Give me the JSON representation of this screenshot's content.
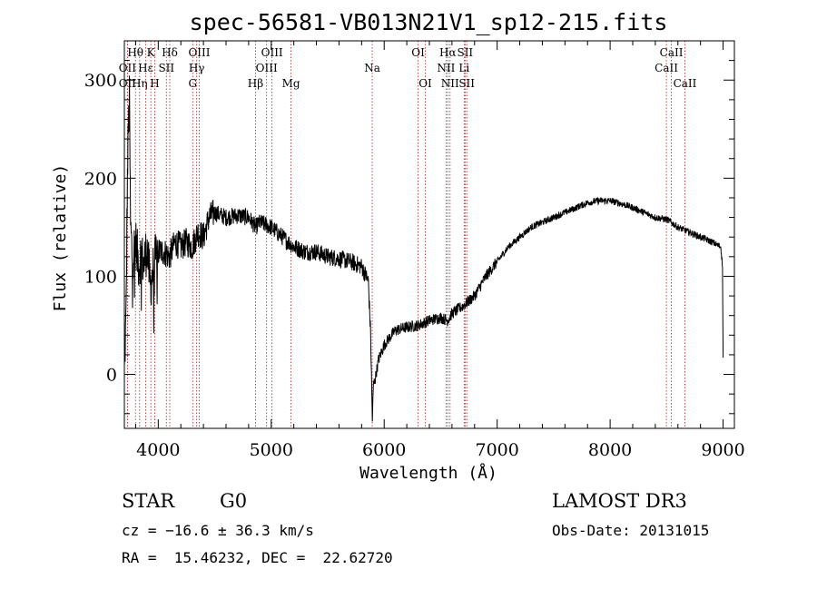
{
  "chart_data": {
    "type": "line",
    "title": "spec-56581-VB013N21V1_sp12-215.fits",
    "xlabel": "Wavelength (Å)",
    "ylabel": "Flux (relative)",
    "xlim": [
      3700,
      9100
    ],
    "ylim": [
      -55,
      340
    ],
    "xticks": [
      4000,
      5000,
      6000,
      7000,
      8000,
      9000
    ],
    "yticks": [
      0,
      100,
      200,
      300
    ],
    "series": [
      {
        "name": "flux",
        "anchors": [
          [
            3700,
            0
          ],
          [
            3715,
            60
          ],
          [
            3725,
            180
          ],
          [
            3735,
            250
          ],
          [
            3745,
            280
          ],
          [
            3755,
            150
          ],
          [
            3770,
            120
          ],
          [
            3800,
            135
          ],
          [
            3830,
            110
          ],
          [
            3850,
            125
          ],
          [
            3870,
            110
          ],
          [
            3900,
            130
          ],
          [
            3930,
            90
          ],
          [
            3960,
            110
          ],
          [
            3990,
            125
          ],
          [
            4050,
            125
          ],
          [
            4100,
            120
          ],
          [
            4150,
            135
          ],
          [
            4200,
            130
          ],
          [
            4250,
            135
          ],
          [
            4300,
            130
          ],
          [
            4350,
            145
          ],
          [
            4400,
            140
          ],
          [
            4450,
            160
          ],
          [
            4500,
            165
          ],
          [
            4600,
            160
          ],
          [
            4700,
            162
          ],
          [
            4800,
            160
          ],
          [
            4861,
            150
          ],
          [
            4900,
            155
          ],
          [
            5000,
            150
          ],
          [
            5100,
            140
          ],
          [
            5200,
            130
          ],
          [
            5300,
            125
          ],
          [
            5400,
            125
          ],
          [
            5500,
            120
          ],
          [
            5600,
            118
          ],
          [
            5700,
            115
          ],
          [
            5800,
            110
          ],
          [
            5860,
            95
          ],
          [
            5880,
            40
          ],
          [
            5895,
            -45
          ],
          [
            5905,
            -10
          ],
          [
            5920,
            -5
          ],
          [
            5950,
            15
          ],
          [
            6000,
            30
          ],
          [
            6050,
            38
          ],
          [
            6100,
            45
          ],
          [
            6200,
            48
          ],
          [
            6300,
            50
          ],
          [
            6400,
            55
          ],
          [
            6500,
            58
          ],
          [
            6560,
            55
          ],
          [
            6600,
            62
          ],
          [
            6700,
            70
          ],
          [
            6800,
            80
          ],
          [
            6900,
            100
          ],
          [
            7000,
            115
          ],
          [
            7100,
            130
          ],
          [
            7200,
            140
          ],
          [
            7300,
            150
          ],
          [
            7400,
            155
          ],
          [
            7500,
            160
          ],
          [
            7600,
            165
          ],
          [
            7700,
            170
          ],
          [
            7800,
            175
          ],
          [
            7900,
            177
          ],
          [
            8000,
            177
          ],
          [
            8100,
            174
          ],
          [
            8200,
            170
          ],
          [
            8300,
            165
          ],
          [
            8400,
            160
          ],
          [
            8500,
            158
          ],
          [
            8542,
            155
          ],
          [
            8600,
            150
          ],
          [
            8700,
            145
          ],
          [
            8800,
            140
          ],
          [
            8900,
            135
          ],
          [
            8980,
            130
          ],
          [
            8995,
            110
          ],
          [
            9000,
            20
          ]
        ]
      }
    ],
    "lines": [
      {
        "label": "Hθ",
        "wave": 3798,
        "row": 1
      },
      {
        "label": "OII",
        "wave": 3727,
        "row": 2
      },
      {
        "label": "OII",
        "wave": 3727,
        "row": 3
      },
      {
        "label": "Hη",
        "wave": 3835,
        "row": 3
      },
      {
        "label": "Hε",
        "wave": 3889,
        "row": 2
      },
      {
        "label": "K",
        "wave": 3934,
        "row": 1
      },
      {
        "label": "H",
        "wave": 3969,
        "row": 3
      },
      {
        "label": "SII",
        "wave": 4072,
        "row": 2
      },
      {
        "label": "Hδ",
        "wave": 4102,
        "row": 1
      },
      {
        "label": "G",
        "wave": 4305,
        "row": 3
      },
      {
        "label": "Hγ",
        "wave": 4340,
        "row": 2
      },
      {
        "label": "OIII",
        "wave": 4363,
        "row": 1
      },
      {
        "label": "Hβ",
        "wave": 4861,
        "row": 3
      },
      {
        "label": "OIII",
        "wave": 4959,
        "row": 2
      },
      {
        "label": "OIII",
        "wave": 5007,
        "row": 1
      },
      {
        "label": "Mg",
        "wave": 5175,
        "row": 3
      },
      {
        "label": "Na",
        "wave": 5894,
        "row": 2
      },
      {
        "label": "OI",
        "wave": 6300,
        "row": 1
      },
      {
        "label": "OI",
        "wave": 6364,
        "row": 3
      },
      {
        "label": "NII",
        "wave": 6548,
        "row": 2
      },
      {
        "label": "Hα",
        "wave": 6563,
        "row": 1
      },
      {
        "label": "NII",
        "wave": 6583,
        "row": 3
      },
      {
        "label": "Li",
        "wave": 6708,
        "row": 2
      },
      {
        "label": "SII",
        "wave": 6716,
        "row": 1
      },
      {
        "label": "SII",
        "wave": 6731,
        "row": 3
      },
      {
        "label": "CaII",
        "wave": 8498,
        "row": 2
      },
      {
        "label": "CaII",
        "wave": 8542,
        "row": 1
      },
      {
        "label": "CaII",
        "wave": 8662,
        "row": 3
      }
    ]
  },
  "info": {
    "object_class": "STAR",
    "subclass": "G0",
    "survey": "LAMOST DR3",
    "redshift": "cz = −16.6 ± 36.3 km/s",
    "obs_date": "Obs-Date: 20131015",
    "coords": "RA =  15.46232, DEC =  22.62720"
  },
  "colors": {
    "line_marker": "#b22222",
    "spectrum": "#000000",
    "axes": "#000000"
  }
}
